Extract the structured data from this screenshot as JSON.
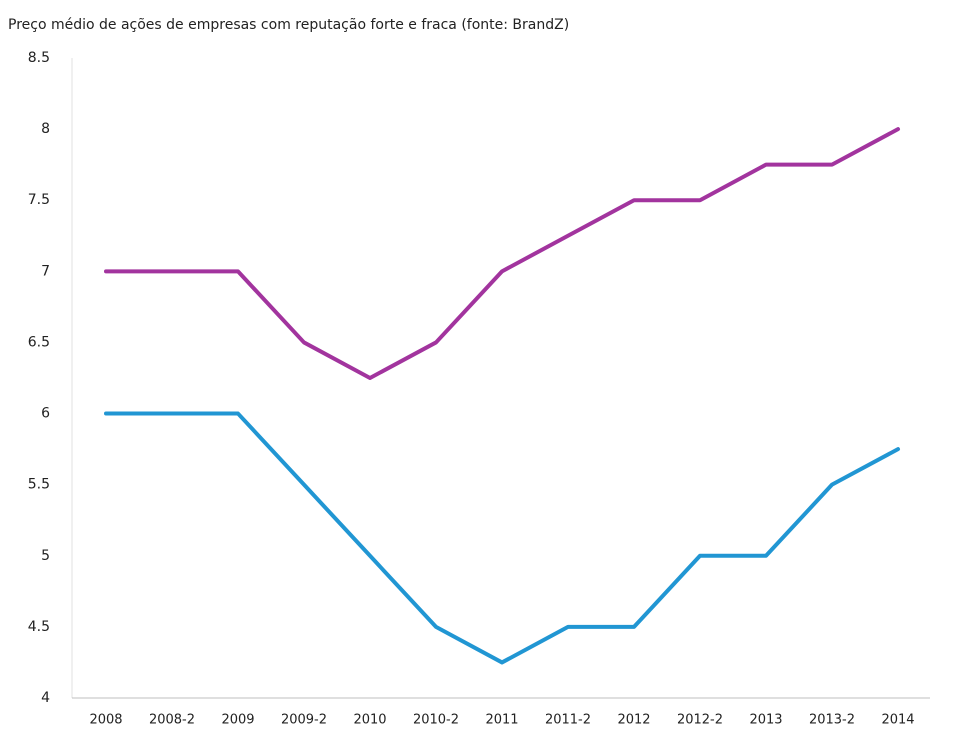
{
  "chart_data": {
    "type": "line",
    "title": "Preço médio de ações de empresas com reputação forte e fraca (fonte: BrandZ)",
    "categories": [
      "2008",
      "2008-2",
      "2009",
      "2009-2",
      "2010",
      "2010-2",
      "2011",
      "2011-2",
      "2012",
      "2012-2",
      "2013",
      "2013-2",
      "2014"
    ],
    "series": [
      {
        "color": "#a2349e",
        "values": [
          7,
          7,
          7,
          6.5,
          6.25,
          6.5,
          7,
          7.25,
          7.5,
          7.5,
          7.75,
          7.75,
          8
        ]
      },
      {
        "color": "#2196d3",
        "values": [
          6,
          6,
          6,
          5.5,
          5,
          4.5,
          4.25,
          4.5,
          4.5,
          5,
          5,
          5.5,
          5.75
        ]
      }
    ],
    "ylim": [
      4,
      8.5
    ],
    "yticks": [
      4,
      4.5,
      5,
      5.5,
      6,
      6.5,
      7,
      7.5,
      8,
      8.5
    ],
    "grid": false
  }
}
